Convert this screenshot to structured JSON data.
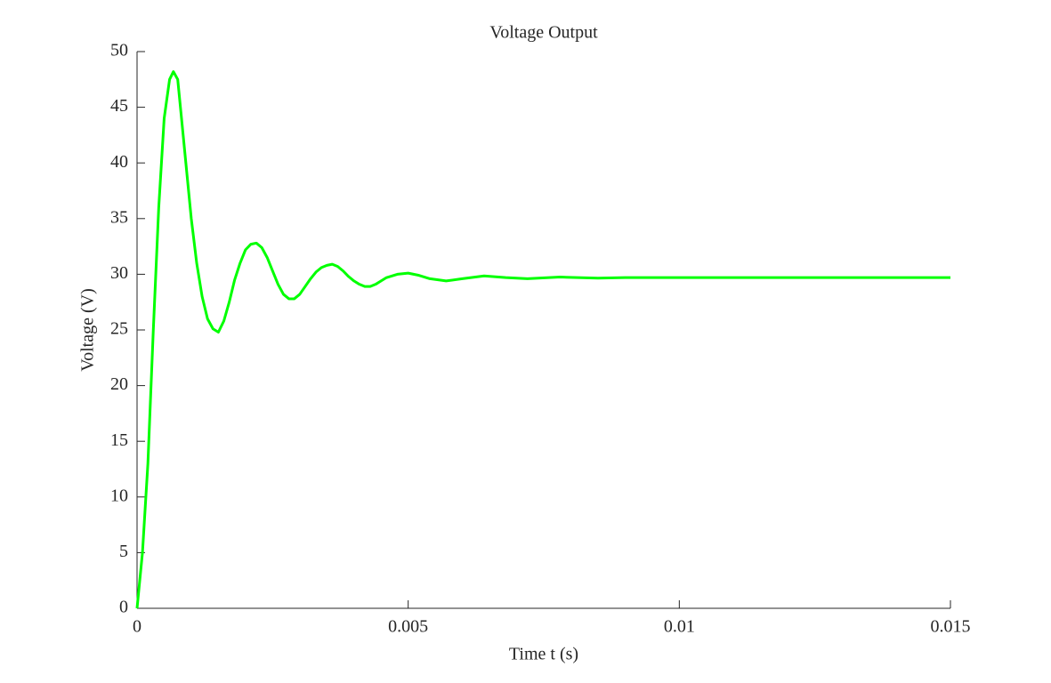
{
  "chart_data": {
    "type": "line",
    "title": "Voltage Output",
    "x_label": "Time t (s)",
    "y_label": "Voltage (V)",
    "x": [
      0,
      0.0001,
      0.0002,
      0.0003,
      0.0004,
      0.0005,
      0.0006,
      0.00067,
      0.00075,
      0.0008,
      0.0009,
      0.001,
      0.0011,
      0.0012,
      0.0013,
      0.0014,
      0.0015,
      0.0016,
      0.0017,
      0.0018,
      0.0019,
      0.002,
      0.0021,
      0.0022,
      0.0023,
      0.0024,
      0.0025,
      0.0026,
      0.0027,
      0.0028,
      0.0029,
      0.003,
      0.0031,
      0.0032,
      0.0033,
      0.0034,
      0.0035,
      0.0036,
      0.0037,
      0.0038,
      0.0039,
      0.004,
      0.0041,
      0.0042,
      0.0043,
      0.0044,
      0.0045,
      0.0046,
      0.0048,
      0.005,
      0.0052,
      0.0054,
      0.0057,
      0.006,
      0.0064,
      0.0068,
      0.0072,
      0.0078,
      0.0085,
      0.009,
      0.011,
      0.013,
      0.015
    ],
    "series": [
      {
        "name": "Voltage",
        "color": "#00ff00",
        "values": [
          0,
          5,
          13,
          25,
          36,
          44,
          47.5,
          48.2,
          47.5,
          45,
          40,
          35,
          31,
          28,
          26,
          25.1,
          24.8,
          25.8,
          27.5,
          29.5,
          31,
          32.2,
          32.7,
          32.8,
          32.4,
          31.5,
          30.3,
          29.1,
          28.2,
          27.8,
          27.8,
          28.2,
          28.9,
          29.6,
          30.2,
          30.6,
          30.8,
          30.9,
          30.7,
          30.3,
          29.8,
          29.4,
          29.1,
          28.9,
          28.9,
          29.1,
          29.4,
          29.7,
          30,
          30.1,
          29.9,
          29.6,
          29.4,
          29.6,
          29.85,
          29.7,
          29.6,
          29.75,
          29.65,
          29.7,
          29.7,
          29.7,
          29.7
        ]
      }
    ],
    "xlim": [
      0,
      0.015
    ],
    "xticks": [
      0,
      0.005,
      0.01,
      0.015
    ],
    "ylim": [
      0,
      50
    ],
    "yticks": [
      0,
      5,
      10,
      15,
      20,
      25,
      30,
      35,
      40,
      45,
      50
    ]
  }
}
